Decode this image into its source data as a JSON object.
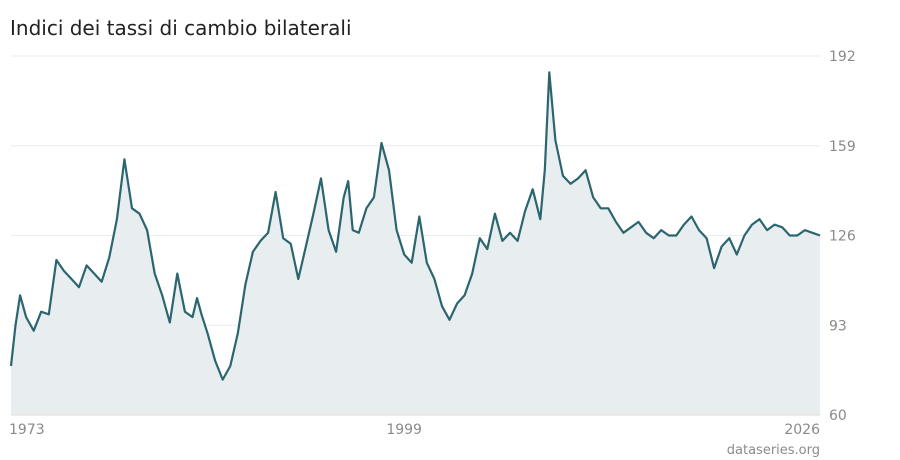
{
  "source": "dataseries.org",
  "colors": {
    "line": "#2b6570",
    "area": "#e8eef0",
    "grid": "#ececec",
    "text": "#8a8a8a",
    "title": "#222222"
  },
  "chart_data": {
    "type": "area",
    "title": "Indici dei tassi di cambio bilaterali",
    "xlabel": "",
    "ylabel": "",
    "xlim": [
      1973,
      2026.5
    ],
    "ylim": [
      60,
      192
    ],
    "yticks": [
      192,
      159,
      126,
      93,
      60
    ],
    "xticks": [
      1973,
      1999,
      2026
    ],
    "x_tick_labels": [
      "1973",
      "1999",
      "2026"
    ],
    "grid": true,
    "legend": "none",
    "y_axis_side": "right",
    "series": [
      {
        "x": [
          1973.0,
          1973.3,
          1973.6,
          1974.0,
          1974.5,
          1975.0,
          1975.5,
          1976.0,
          1976.5,
          1977.0,
          1977.5,
          1978.0,
          1978.5,
          1979.0,
          1979.5,
          1980.0,
          1980.5,
          1981.0,
          1981.5,
          1982.0,
          1982.5,
          1983.0,
          1983.5,
          1984.0,
          1984.5,
          1985.0,
          1985.3,
          1985.6,
          1986.0,
          1986.5,
          1987.0,
          1987.5,
          1988.0,
          1988.5,
          1989.0,
          1989.5,
          1990.0,
          1990.5,
          1991.0,
          1991.5,
          1992.0,
          1992.5,
          1993.0,
          1993.5,
          1994.0,
          1994.5,
          1995.0,
          1995.3,
          1995.6,
          1996.0,
          1996.5,
          1997.0,
          1997.5,
          1998.0,
          1998.5,
          1999.0,
          1999.5,
          2000.0,
          2000.5,
          2001.0,
          2001.5,
          2002.0,
          2002.5,
          2003.0,
          2003.5,
          2004.0,
          2004.5,
          2005.0,
          2005.5,
          2006.0,
          2006.5,
          2007.0,
          2007.5,
          2008.0,
          2008.3,
          2008.6,
          2009.0,
          2009.5,
          2010.0,
          2010.5,
          2011.0,
          2011.5,
          2012.0,
          2012.5,
          2013.0,
          2013.5,
          2014.0,
          2014.5,
          2015.0,
          2015.5,
          2016.0,
          2016.5,
          2017.0,
          2017.5,
          2018.0,
          2018.5,
          2019.0,
          2019.5,
          2020.0,
          2020.5,
          2021.0,
          2021.5,
          2022.0,
          2022.5,
          2023.0,
          2023.5,
          2024.0,
          2024.5,
          2025.0,
          2025.5,
          2026.0,
          2026.5
        ],
        "values": [
          78,
          93,
          104,
          96,
          91,
          98,
          97,
          117,
          113,
          110,
          107,
          115,
          112,
          109,
          118,
          132,
          154,
          136,
          134,
          128,
          112,
          104,
          94,
          112,
          98,
          96,
          103,
          97,
          90,
          80,
          73,
          78,
          90,
          108,
          120,
          124,
          127,
          142,
          125,
          123,
          110,
          122,
          134,
          147,
          128,
          120,
          140,
          146,
          128,
          127,
          136,
          140,
          160,
          150,
          128,
          119,
          116,
          133,
          116,
          110,
          100,
          95,
          101,
          104,
          112,
          125,
          121,
          134,
          124,
          127,
          124,
          135,
          143,
          132,
          150,
          186,
          161,
          148,
          145,
          147,
          150,
          140,
          136,
          136,
          131,
          127,
          129,
          131,
          127,
          125,
          128,
          126,
          126,
          130,
          133,
          128,
          125,
          114,
          122,
          125,
          119,
          126,
          130,
          132,
          128,
          130,
          129,
          126,
          126,
          128,
          127,
          126
        ]
      }
    ]
  }
}
